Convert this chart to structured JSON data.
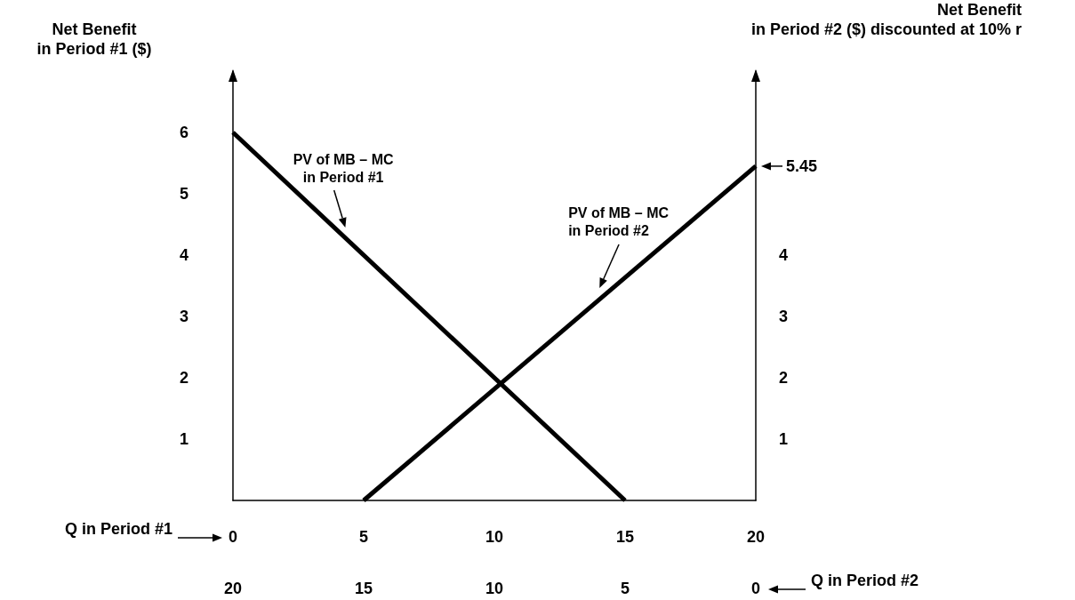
{
  "chart_data": {
    "type": "line",
    "xlabel": "Q in Period #1",
    "x2label": "Q in Period #2",
    "ylabel": "Net Benefit\nin Period #1 ($)",
    "y2label": "Net Benefit\nin Period #2 ($) discounted at 10% r",
    "xlim": [
      0,
      20
    ],
    "xticks": [
      0,
      5,
      10,
      15,
      20
    ],
    "x2lim": [
      20,
      0
    ],
    "x2ticks": [
      20,
      15,
      10,
      5,
      0
    ],
    "ylim": [
      0,
      7
    ],
    "yticks": [
      1,
      2,
      3,
      4,
      5,
      6
    ],
    "y2lim": [
      0,
      7
    ],
    "y2ticks": [
      1,
      2,
      3,
      4
    ],
    "series": [
      {
        "name": "PV of MB – MC\nin Period #1",
        "color": "#000000",
        "x": [
          0,
          15
        ],
        "values": [
          6,
          0
        ]
      },
      {
        "name": "PV of MB – MC\nin Period #2",
        "color": "#000000",
        "x": [
          5,
          20
        ],
        "values": [
          0,
          5.45
        ]
      }
    ],
    "annotations": [
      {
        "text": "5.45",
        "x": 20,
        "y": 5.45
      }
    ],
    "legend": false,
    "grid": false,
    "marker": "none",
    "line_style": "solid"
  }
}
